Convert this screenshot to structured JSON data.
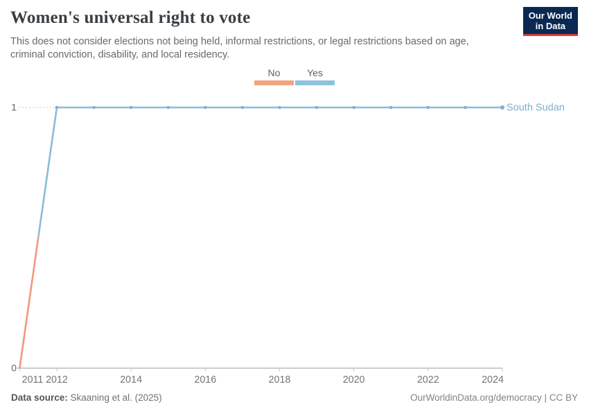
{
  "header": {
    "title": "Women's universal right to vote",
    "subtitle": "This does not consider elections not being held, informal restrictions, or legal restrictions based on age, criminal conviction, disability, and local residency.",
    "logo": {
      "line1": "Our World",
      "line2": "in Data",
      "background": "#0a2952",
      "accent_bar": "#dc3a3f"
    }
  },
  "legend": {
    "items": [
      {
        "label": "No",
        "color": "#f2a482"
      },
      {
        "label": "Yes",
        "color": "#8ec3dd"
      }
    ]
  },
  "chart_data": {
    "type": "line",
    "title": "Women's universal right to vote",
    "entity_label": "South Sudan",
    "entity_label_color": "#7faecd",
    "x": [
      2011,
      2012,
      2013,
      2014,
      2015,
      2016,
      2017,
      2018,
      2019,
      2020,
      2021,
      2022,
      2023,
      2024
    ],
    "series": [
      {
        "name": "South Sudan",
        "values": [
          0,
          1,
          1,
          1,
          1,
          1,
          1,
          1,
          1,
          1,
          1,
          1,
          1,
          1
        ]
      }
    ],
    "value_categories": {
      "0": "No",
      "1": "Yes"
    },
    "category_colors": {
      "No": "#f0987a",
      "Yes": "#89bcda"
    },
    "marker_color": "#7fb2d2",
    "ylim": [
      0,
      1
    ],
    "yticks": [
      0,
      1
    ],
    "xticks": [
      2011,
      2012,
      2014,
      2016,
      2018,
      2020,
      2022,
      2024
    ],
    "grid": "dashed horizontal gridline at y=1 only",
    "legend_position": "top center",
    "axis_color": "#9a9a9a",
    "gridline_color": "#cbcbcb",
    "tick_label_color": "#757575"
  },
  "footer": {
    "source_label": "Data source:",
    "source_value": " Skaaning et al. (2025)",
    "right_text": "OurWorldinData.org/democracy | CC BY"
  }
}
